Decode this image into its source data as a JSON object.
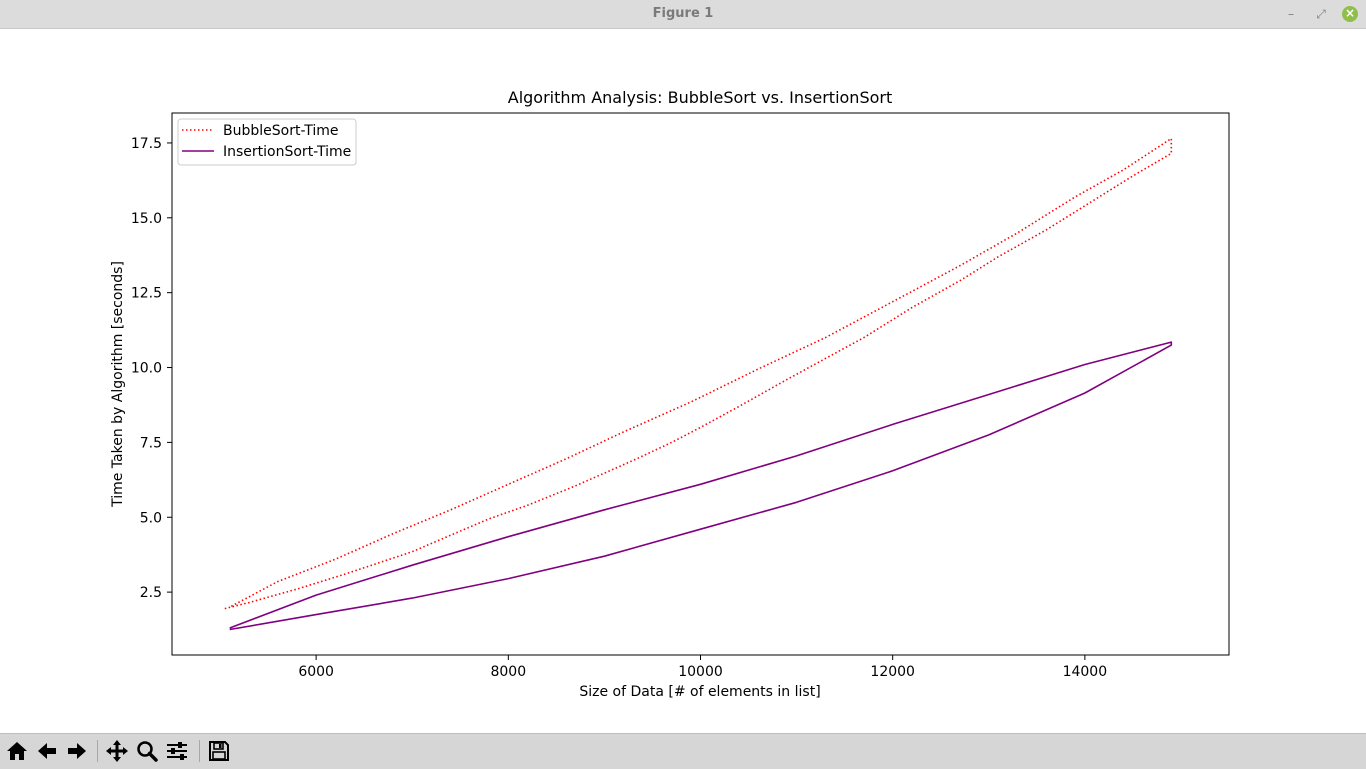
{
  "window": {
    "title": "Figure 1"
  },
  "toolbar": {
    "buttons": [
      {
        "name": "home",
        "icon": "home-icon"
      },
      {
        "name": "back",
        "icon": "arrow-left-icon"
      },
      {
        "name": "forward",
        "icon": "arrow-right-icon"
      },
      {
        "name": "pan",
        "icon": "move-icon"
      },
      {
        "name": "zoom",
        "icon": "magnifier-icon"
      },
      {
        "name": "configure-subplots",
        "icon": "sliders-icon"
      },
      {
        "name": "save",
        "icon": "floppy-disk-icon"
      }
    ]
  },
  "chart_data": {
    "type": "line",
    "title": "Algorithm Analysis: BubbleSort vs. InsertionSort",
    "xlabel": "Size of Data [# of elements in list]",
    "ylabel": "Time Taken by Algorithm [seconds]",
    "xlim": [
      4500,
      15500
    ],
    "ylim": [
      0.4,
      18.5
    ],
    "xticks": [
      6000,
      8000,
      10000,
      12000,
      14000
    ],
    "xtick_labels": [
      "6000",
      "8000",
      "10000",
      "12000",
      "14000"
    ],
    "yticks": [
      2.5,
      5.0,
      7.5,
      10.0,
      12.5,
      15.0,
      17.5
    ],
    "ytick_labels": [
      "2.5",
      "5.0",
      "7.5",
      "10.0",
      "12.5",
      "15.0",
      "17.5"
    ],
    "grid": false,
    "legend_position": "top-left",
    "series": [
      {
        "name": "BubbleSort-Time",
        "color": "#ff0000",
        "linestyle": "dotted",
        "x": [
          5050,
          5300,
          5800,
          6300,
          7000,
          7400,
          7800,
          8200,
          8700,
          9300,
          9700,
          10000,
          10400,
          10900,
          11300,
          11700,
          12200,
          12700,
          13100,
          13600,
          14100,
          14500,
          14900,
          14900,
          14400,
          13900,
          13300,
          12700,
          12000,
          11300,
          10600,
          9900,
          9200,
          8600,
          8000,
          7400,
          6800,
          6200,
          5600,
          5100
        ],
        "y": [
          1.95,
          2.15,
          2.6,
          3.1,
          3.85,
          4.4,
          4.95,
          5.4,
          6.05,
          6.9,
          7.5,
          8.0,
          8.7,
          9.6,
          10.3,
          11.0,
          12.0,
          12.9,
          13.7,
          14.6,
          15.6,
          16.4,
          17.15,
          17.65,
          16.6,
          15.7,
          14.5,
          13.4,
          12.2,
          11.0,
          9.95,
          8.85,
          7.85,
          6.95,
          6.1,
          5.25,
          4.45,
          3.6,
          2.85,
          2.0
        ]
      },
      {
        "name": "InsertionSort-Time",
        "color": "#800080",
        "linestyle": "solid",
        "x": [
          5100,
          6000,
          7000,
          8000,
          9000,
          10000,
          11000,
          12000,
          13000,
          14000,
          14900,
          14900,
          14000,
          13000,
          12000,
          11000,
          10000,
          9000,
          8000,
          7000,
          6000,
          5100
        ],
        "y": [
          1.25,
          1.75,
          2.3,
          2.95,
          3.7,
          4.6,
          5.5,
          6.55,
          7.75,
          9.15,
          10.75,
          10.85,
          10.1,
          9.1,
          8.1,
          7.05,
          6.1,
          5.25,
          4.35,
          3.4,
          2.4,
          1.3
        ]
      }
    ]
  }
}
